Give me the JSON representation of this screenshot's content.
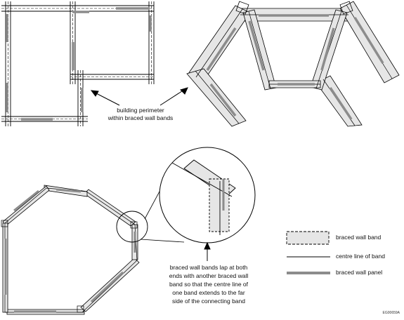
{
  "annotations": {
    "perimeter": [
      "building perimeter",
      "within braced wall bands"
    ],
    "lap": [
      "braced wall bands lap at both",
      "ends with another braced wall",
      "band so that the centre line of",
      "one band extends to the far",
      "side of the connecting band"
    ]
  },
  "legend": {
    "band": "braced wall band",
    "centre": "centre line of band",
    "panel": "braced wall panel"
  },
  "figure_code": "EG00659A",
  "colors": {
    "band_fill": "#e6e6e6",
    "stroke": "#000000",
    "panel": "#8c8c8c"
  }
}
